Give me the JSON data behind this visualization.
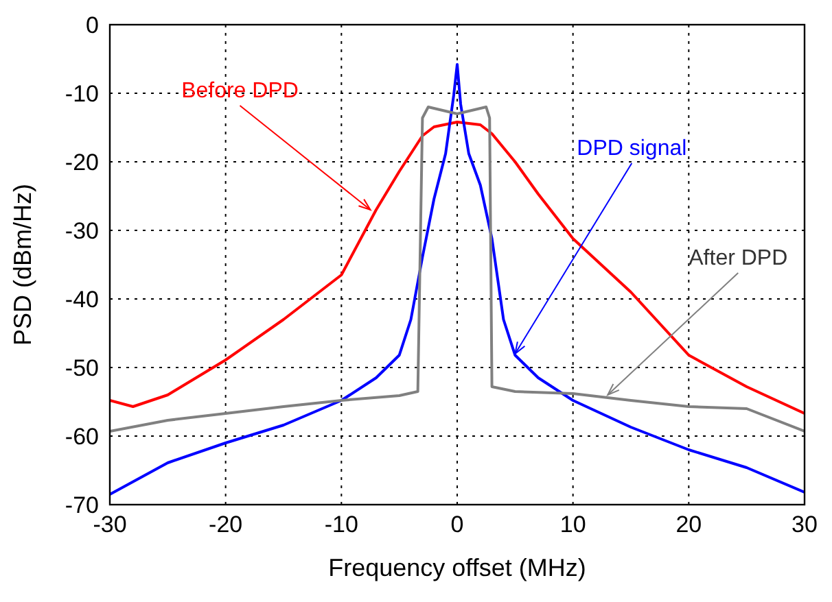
{
  "chart_data": {
    "type": "line",
    "xlabel": "Frequency offset (MHz)",
    "ylabel": "PSD (dBm/Hz)",
    "xlim": [
      -30,
      30
    ],
    "ylim": [
      -70,
      0
    ],
    "xticks": [
      -30,
      -20,
      -10,
      0,
      10,
      20,
      30
    ],
    "yticks": [
      -70,
      -60,
      -50,
      -40,
      -30,
      -20,
      -10,
      0
    ],
    "grid": true,
    "marker": "none",
    "line_style": "solid",
    "series": [
      {
        "color": "#ff0000",
        "x": [
          -30,
          -28,
          -25,
          -20,
          -15,
          -10,
          -7,
          -5,
          -3,
          -2,
          0,
          2,
          3,
          5,
          7,
          10,
          15,
          20,
          25,
          30
        ],
        "values": [
          -54.8,
          -55.7,
          -54,
          -48.9,
          -43,
          -36.5,
          -27,
          -21.4,
          -16.2,
          -14.9,
          -14.2,
          -14.6,
          -15.9,
          -20,
          -24.7,
          -31.2,
          -39,
          -48.2,
          -52.8,
          -56.7
        ]
      },
      {
        "color": "#0000ff",
        "x": [
          -30,
          -25,
          -20,
          -15,
          -10,
          -7,
          -5,
          -4,
          -3,
          -2,
          -1,
          -0.3,
          0,
          0.3,
          1,
          2,
          3,
          4,
          5,
          7,
          10,
          15,
          20,
          25,
          30
        ],
        "values": [
          -68.5,
          -63.9,
          -61,
          -58.4,
          -54.8,
          -51.5,
          -48.2,
          -43,
          -33.9,
          -25.4,
          -18.8,
          -10.3,
          -5.8,
          -11.6,
          -18.8,
          -23.4,
          -31.2,
          -43,
          -48.2,
          -51.5,
          -54.8,
          -58.7,
          -62,
          -64.6,
          -68.2
        ]
      },
      {
        "color": "#808080",
        "x": [
          -30,
          -25,
          -20,
          -15,
          -10,
          -5,
          -3.4,
          -3,
          -2.5,
          -1,
          0,
          1,
          2.5,
          2.8,
          3,
          5,
          10,
          15,
          20,
          25,
          30
        ],
        "values": [
          -59.3,
          -57.7,
          -56.7,
          -55.7,
          -54.8,
          -54.1,
          -53.5,
          -13.6,
          -12,
          -12.6,
          -13,
          -12.6,
          -12,
          -13.6,
          -52.8,
          -53.5,
          -53.8,
          -54.8,
          -55.7,
          -56,
          -59.3
        ]
      }
    ],
    "annotations": [
      {
        "text": "Before DPD",
        "x": -7.5,
        "y": -27
      },
      {
        "text": "DPD signal",
        "x": 5,
        "y": -48
      },
      {
        "text": "After DPD",
        "x": 13,
        "y": -54
      }
    ]
  }
}
